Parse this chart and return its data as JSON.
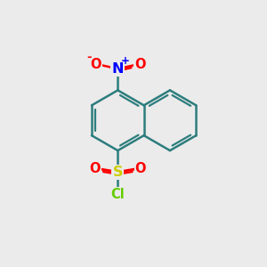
{
  "background_color": "#ebebeb",
  "ring_color": "#2d7d7d",
  "ring_linewidth": 1.8,
  "N_color": "#0000ff",
  "O_color": "#ff0000",
  "S_color": "#cccc00",
  "Cl_color": "#66cc00",
  "text_fontsize": 10.5,
  "fig_width": 3.0,
  "fig_height": 3.0,
  "dpi": 100,
  "xlim": [
    0,
    10
  ],
  "ylim": [
    0,
    10
  ]
}
